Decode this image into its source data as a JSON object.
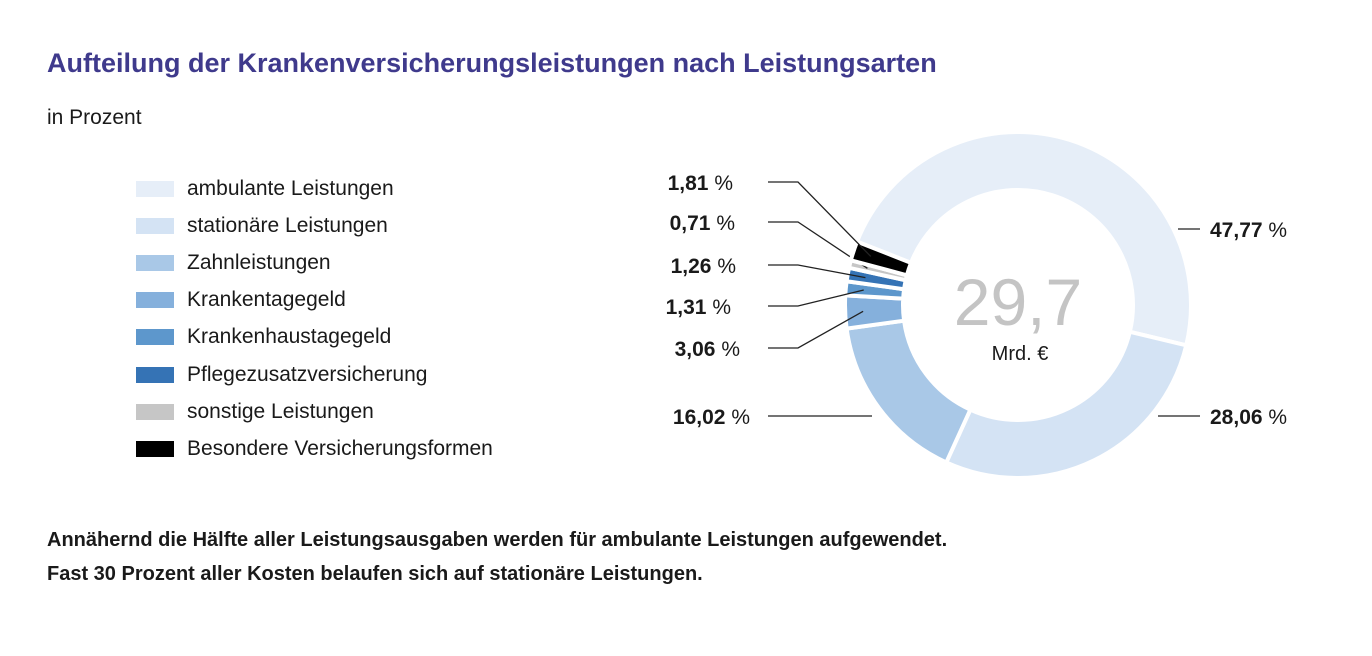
{
  "chart_data": {
    "type": "pie",
    "title": "Aufteilung der Krankenversicherungsleistungen nach Leistungsarten",
    "subtitle": "in Prozent",
    "center_value": "29,7",
    "center_unit": "Mrd. €",
    "unit_symbol": "%",
    "segments": [
      {
        "name": "ambulante Leistungen",
        "value": 47.77,
        "label": "47,77",
        "color": "#e6eef8"
      },
      {
        "name": "stationäre Leistungen",
        "value": 28.06,
        "label": "28,06",
        "color": "#d4e3f4"
      },
      {
        "name": "Zahnleistungen",
        "value": 16.02,
        "label": "16,02",
        "color": "#a9c8e7"
      },
      {
        "name": "Krankentagegeld",
        "value": 3.06,
        "label": "3,06",
        "color": "#85b0dc"
      },
      {
        "name": "Krankenhaustagegeld",
        "value": 1.31,
        "label": "1,31",
        "color": "#5d97cc"
      },
      {
        "name": "Pflegezusatzversicherung",
        "value": 1.26,
        "label": "1,26",
        "color": "#3573b5"
      },
      {
        "name": "sonstige Leistungen",
        "value": 0.71,
        "label": "0,71",
        "color": "#c6c6c6"
      },
      {
        "name": "Besondere Versicherungsformen",
        "value": 1.81,
        "label": "1,81",
        "color": "#000000"
      }
    ]
  },
  "footer": {
    "line1": "Annähernd die Hälfte aller Leistungsausgaben werden für ambulante Leistungen aufgewendet.",
    "line2": "Fast 30 Prozent aller Kosten belaufen sich auf stationäre Leistungen."
  }
}
